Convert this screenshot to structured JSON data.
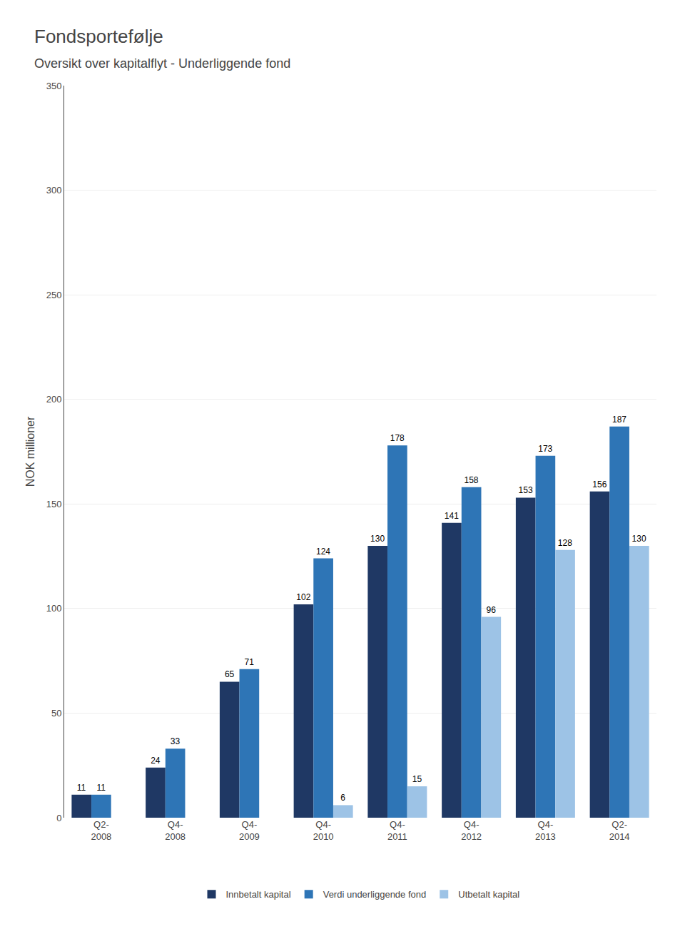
{
  "chart_data": {
    "type": "bar",
    "title": "Fondsportefølje",
    "subtitle": "Oversikt over kapitalflyt - Underliggende fond",
    "y_label": "NOK millioner",
    "categories": [
      "Q2-\n2008",
      "Q4-\n2008",
      "Q4-\n2009",
      "Q4-\n2010",
      "Q4-\n2011",
      "Q4-\n2012",
      "Q4-\n2013",
      "Q2-\n2014"
    ],
    "series": [
      {
        "name": "Innbetalt kapital",
        "color": "#1F3864",
        "values": [
          11,
          24,
          65,
          102,
          130,
          141,
          153,
          156
        ]
      },
      {
        "name": "Verdi underliggende fond",
        "color": "#2E75B6",
        "values": [
          11,
          33,
          71,
          124,
          178,
          158,
          173,
          187
        ]
      },
      {
        "name": "Utbetalt kapital",
        "color": "#9DC3E6",
        "values": [
          0,
          0,
          0,
          6,
          15,
          96,
          128,
          130
        ],
        "value_labels": [
          null,
          null,
          null,
          "6",
          "15",
          "96",
          "128",
          "130"
        ]
      }
    ],
    "ylim": [
      0,
      350
    ],
    "yticks": [
      0,
      50,
      100,
      150,
      200,
      250,
      300,
      350
    ],
    "grid": true,
    "legend": "bottom",
    "data_labels": true
  }
}
